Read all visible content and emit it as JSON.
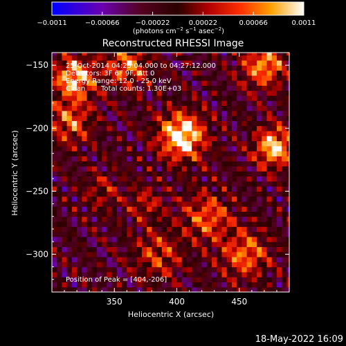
{
  "chart_data": {
    "type": "heatmap",
    "title": "Reconstructed RHESSI Image",
    "xlabel": "Heliocentric X (arcsec)",
    "ylabel": "Heliocentric Y (arcsec)",
    "xlim": [
      300,
      490
    ],
    "ylim": [
      -330,
      -140
    ],
    "x_ticks": [
      350,
      400,
      450
    ],
    "y_ticks": [
      -150,
      -200,
      -250,
      -300
    ],
    "x_tick_labels": [
      "350",
      "400",
      "450"
    ],
    "y_tick_labels": [
      "−150",
      "−200",
      "−250",
      "−300"
    ],
    "colorbar": {
      "min": -0.0011,
      "max": 0.0011,
      "tick_values": [
        -0.0011,
        -0.00066,
        -0.00022,
        0.00022,
        0.00066,
        0.0011
      ],
      "tick_labels": [
        "−0.0011",
        "−0.00066",
        "−0.00022",
        "0.00022",
        "0.00066",
        "0.0011"
      ],
      "colormap": "rainbow-hot"
    },
    "annotations": {
      "time_range": "25-Oct-2014 04:25:04.000 to 04:27:12.000",
      "detectors": "Detectors: 3F 6F 9F, Att 0",
      "energy_range": "Energy Range: 12.0 - 25.0 keV",
      "clean_label": "Clean",
      "total_counts": "Total counts: 1.30E+03",
      "peak_position": "Position of Peak = [404,-206]"
    },
    "peak": {
      "x": 404,
      "y": -206
    },
    "sources": [
      {
        "x": 404,
        "y": -206,
        "amplitude": 1.0,
        "width": 13
      },
      {
        "x": 478,
        "y": -215,
        "amplitude": 0.85,
        "width": 11
      },
      {
        "x": 318,
        "y": -160,
        "amplitude": 0.8,
        "width": 12
      },
      {
        "x": 470,
        "y": -150,
        "amplitude": 0.7,
        "width": 12
      },
      {
        "x": 360,
        "y": -150,
        "amplitude": 0.6,
        "width": 12
      },
      {
        "x": 315,
        "y": -195,
        "amplitude": 0.55,
        "width": 12
      },
      {
        "x": 425,
        "y": -270,
        "amplitude": 0.55,
        "width": 14
      },
      {
        "x": 455,
        "y": -300,
        "amplitude": 0.6,
        "width": 13
      },
      {
        "x": 385,
        "y": -300,
        "amplitude": 0.45,
        "width": 13
      },
      {
        "x": 375,
        "y": -260,
        "amplitude": 0.35,
        "width": 10
      },
      {
        "x": 340,
        "y": -250,
        "amplitude": 0.3,
        "width": 10
      }
    ]
  },
  "footer": {
    "timestamp": "18-May-2022 16:09"
  },
  "colors": {
    "background": "#000000",
    "text": "#ffffff"
  }
}
